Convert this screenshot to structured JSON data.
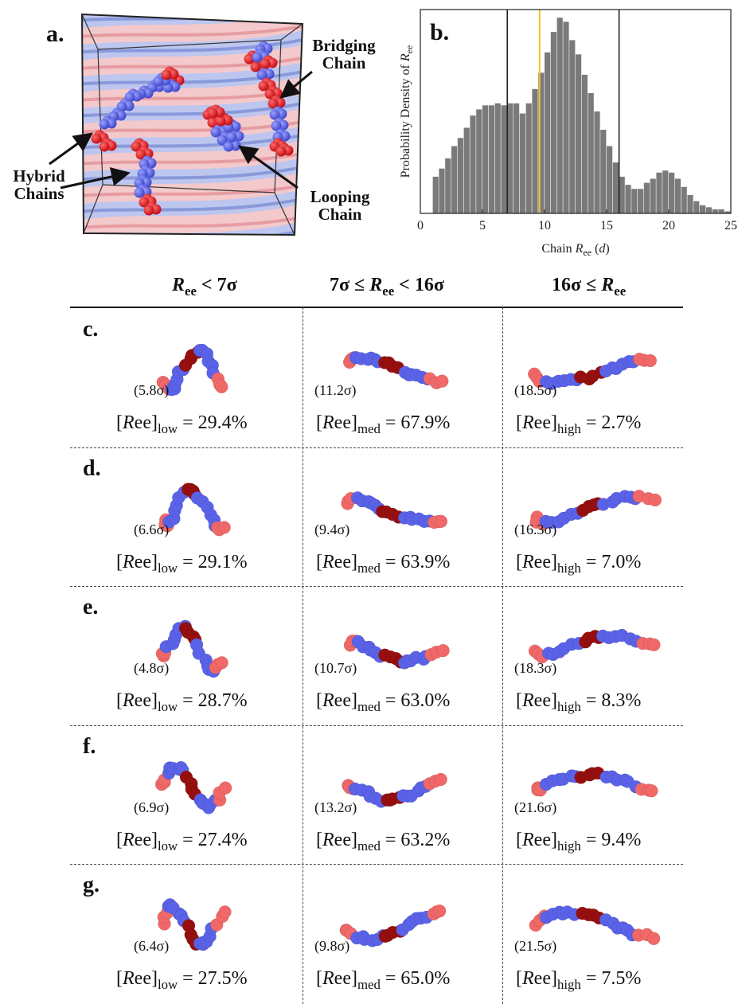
{
  "panel_a": {
    "label": "a.",
    "labels": {
      "bridging": "Bridging\nChain",
      "hybrid": "Hybrid\nChains",
      "looping": "Looping\nChain"
    }
  },
  "chart_data": {
    "type": "bar",
    "panel_label": "b.",
    "xlabel": "Chain R_ee (d)",
    "ylabel": "Probability Density of R_ee",
    "xlim": [
      0,
      25
    ],
    "xticks": [
      0,
      5,
      10,
      15,
      20,
      25
    ],
    "bin_width": 0.5,
    "bin_start": 1.0,
    "values": [
      0.18,
      0.22,
      0.27,
      0.33,
      0.37,
      0.42,
      0.48,
      0.51,
      0.53,
      0.53,
      0.54,
      0.53,
      0.54,
      0.54,
      0.49,
      0.54,
      0.61,
      0.69,
      0.79,
      0.89,
      0.96,
      0.94,
      0.85,
      0.78,
      0.68,
      0.59,
      0.5,
      0.41,
      0.33,
      0.25,
      0.18,
      0.14,
      0.12,
      0.12,
      0.15,
      0.17,
      0.2,
      0.21,
      0.2,
      0.17,
      0.13,
      0.09,
      0.06,
      0.04,
      0.03,
      0.02,
      0.02,
      0.01
    ],
    "reference_lines": [
      {
        "x": 7,
        "color": "#222222"
      },
      {
        "x": 9.6,
        "color": "#f0c030"
      },
      {
        "x": 16,
        "color": "#222222"
      }
    ],
    "bar_color": "#7a7a7a"
  },
  "table": {
    "headers": [
      "R_ee < 7σ",
      "7σ ≤ R_ee < 16σ",
      "16σ ≤ R_ee"
    ],
    "rows": [
      {
        "label": "c.",
        "cells": [
          {
            "ree": "(5.8σ)",
            "pct": "29.4%"
          },
          {
            "ree": "(11.2σ)",
            "pct": "67.9%"
          },
          {
            "ree": "(18.5σ)",
            "pct": "2.7%"
          }
        ]
      },
      {
        "label": "d.",
        "cells": [
          {
            "ree": "(6.6σ)",
            "pct": "29.1%"
          },
          {
            "ree": "(9.4σ)",
            "pct": "63.9%"
          },
          {
            "ree": "(16.3σ)",
            "pct": "7.0%"
          }
        ]
      },
      {
        "label": "e.",
        "cells": [
          {
            "ree": "(4.8σ)",
            "pct": "28.7%"
          },
          {
            "ree": "(10.7σ)",
            "pct": "63.0%"
          },
          {
            "ree": "(18.3σ)",
            "pct": "8.3%"
          }
        ]
      },
      {
        "label": "f.",
        "cells": [
          {
            "ree": "(6.9σ)",
            "pct": "27.4%"
          },
          {
            "ree": "(13.2σ)",
            "pct": "63.2%"
          },
          {
            "ree": "(21.6σ)",
            "pct": "9.4%"
          }
        ]
      },
      {
        "label": "g.",
        "cells": [
          {
            "ree": "(6.4σ)",
            "pct": "27.5%"
          },
          {
            "ree": "(9.8σ)",
            "pct": "65.0%"
          },
          {
            "ree": "(21.5σ)",
            "pct": "7.5%"
          }
        ]
      }
    ],
    "frac_prefix": "[Ree]",
    "frac_subs": [
      "low",
      "med",
      "high"
    ]
  },
  "colors": {
    "blue_bead": "#5a62e8",
    "red_bead": "#f06868",
    "dark_red_bead": "#960f0f",
    "bright_red": "#e8141e"
  }
}
